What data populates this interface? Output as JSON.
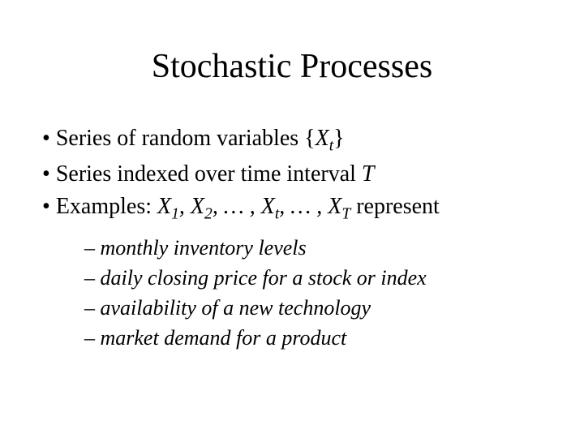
{
  "title": "Stochastic Processes",
  "bullets": {
    "b1_pre": "Series of random variables {",
    "b1_var": "X",
    "b1_sub": "t",
    "b1_post": "}",
    "b2_pre": "Series indexed over time interval ",
    "b2_T": "T",
    "b3_pre": "Examples:  ",
    "b3_x1": "X",
    "b3_s1": "1",
    "b3_c1": ", ",
    "b3_x2": "X",
    "b3_s2": "2",
    "b3_c2": ", … , ",
    "b3_xt": "X",
    "b3_st": "t",
    "b3_c3": ", … , ",
    "b3_xT": "X",
    "b3_sT": "T",
    "b3_post": "  represent"
  },
  "sub": {
    "s1": "monthly inventory levels",
    "s2": "daily closing price for a stock or index",
    "s3": "availability of a new technology",
    "s4": "market demand for a product"
  }
}
